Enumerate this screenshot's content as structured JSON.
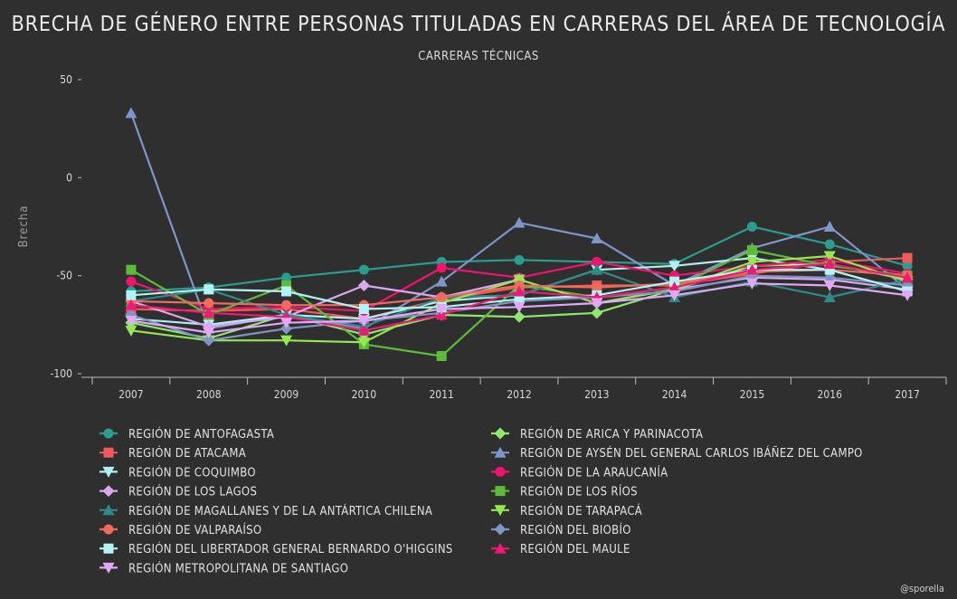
{
  "chart_data": {
    "type": "line",
    "title": "BRECHA DE GÉNERO ENTRE PERSONAS TITULADAS EN CARRERAS DEL ÁREA DE TECNOLOGÍA",
    "subtitle": "CARRERAS TÉCNICAS",
    "xlabel": "",
    "ylabel": "Brecha",
    "ylim": [
      -100,
      50
    ],
    "yticks": [
      50,
      0,
      -50,
      -100
    ],
    "x": [
      "2007",
      "2008",
      "2009",
      "2010",
      "2011",
      "2012",
      "2013",
      "2014",
      "2015",
      "2016",
      "2017"
    ],
    "grid": false,
    "legend_placement": "bottom",
    "series": [
      {
        "name": "REGIÓN DE ANTOFAGASTA",
        "color": "#2a9d8f",
        "marker": "circle",
        "values": [
          -58,
          -56,
          -51,
          -47,
          -43,
          -42,
          -43,
          -44,
          -25,
          -34,
          -45
        ]
      },
      {
        "name": "REGIÓN DE ARICA Y PARINACOTA",
        "color": "#8ee86b",
        "marker": "diamond",
        "values": [
          -74,
          -82,
          -70,
          -80,
          -70,
          -71,
          -69,
          -57,
          -45,
          -44,
          -52
        ]
      },
      {
        "name": "REGIÓN DE ATACAMA",
        "color": "#f05a5a",
        "marker": "square",
        "values": [
          -67,
          -68,
          -67,
          -72,
          -62,
          -56,
          -55,
          -55,
          -49,
          -43,
          -41
        ]
      },
      {
        "name": "REGIÓN DE AYSÉN DEL GENERAL CARLOS IBÁÑEZ DEL CAMPO",
        "color": "#7e95c9",
        "marker": "triangle",
        "values": [
          33,
          -77,
          -70,
          -77,
          -53,
          -23,
          -31,
          -55,
          -36,
          -25,
          -57
        ]
      },
      {
        "name": "REGIÓN DE COQUIMBO",
        "color": "#b3eff0",
        "marker": "triangle-down",
        "values": [
          -72,
          -75,
          -70,
          -72,
          -63,
          -60,
          -47,
          -45,
          -41,
          -47,
          -58
        ]
      },
      {
        "name": "REGIÓN DE LA ARAUCANÍA",
        "color": "#f0146e",
        "marker": "circle",
        "values": [
          -53,
          -67,
          -66,
          -68,
          -46,
          -51,
          -43,
          -50,
          -45,
          -42,
          -49
        ]
      },
      {
        "name": "REGIÓN DE LOS LAGOS",
        "color": "#d9a8f0",
        "marker": "diamond",
        "values": [
          -63,
          -76,
          -71,
          -55,
          -61,
          -52,
          -64,
          -57,
          -51,
          -52,
          -57
        ]
      },
      {
        "name": "REGIÓN DE LOS RÍOS",
        "color": "#5dbb3a",
        "marker": "square",
        "values": [
          -47,
          -70,
          -55,
          -85,
          -91,
          -55,
          -61,
          -56,
          -37,
          -45,
          -50
        ]
      },
      {
        "name": "REGIÓN DE MAGALLANES Y DE LA ANTÁRTICA CHILENA",
        "color": "#2d8a86",
        "marker": "triangle",
        "values": [
          -63,
          -57,
          -70,
          -76,
          -61,
          -60,
          -47,
          -61,
          -53,
          -61,
          -52
        ]
      },
      {
        "name": "REGIÓN DE TARAPACÁ",
        "color": "#95e852",
        "marker": "triangle-down",
        "values": [
          -78,
          -83,
          -83,
          -84,
          -64,
          -52,
          -64,
          -57,
          -43,
          -40,
          -53
        ]
      },
      {
        "name": "REGIÓN DE VALPARAÍSO",
        "color": "#f06a5e",
        "marker": "circle",
        "values": [
          -63,
          -64,
          -65,
          -65,
          -61,
          -55,
          -56,
          -54,
          -48,
          -47,
          -50
        ]
      },
      {
        "name": "REGIÓN DEL BIOBÍO",
        "color": "#7d97c2",
        "marker": "diamond",
        "values": [
          -70,
          -83,
          -77,
          -73,
          -69,
          -63,
          -61,
          -58,
          -50,
          -51,
          -55
        ]
      },
      {
        "name": "REGIÓN DEL LIBERTADOR GENERAL BERNARDO O'HIGGINS",
        "color": "#b4f3f3",
        "marker": "square",
        "values": [
          -60,
          -57,
          -58,
          -67,
          -66,
          -62,
          -60,
          -53,
          -47,
          -47,
          -58
        ]
      },
      {
        "name": "REGIÓN DEL MAULE",
        "color": "#ee1a73",
        "marker": "triangle",
        "values": [
          -65,
          -69,
          -71,
          -78,
          -70,
          -58,
          -61,
          -56,
          -47,
          -44,
          -51
        ]
      },
      {
        "name": "REGIÓN METROPOLITANA DE SANTIAGO",
        "color": "#e2a8f5",
        "marker": "triangle-down",
        "values": [
          -73,
          -79,
          -74,
          -73,
          -67,
          -66,
          -64,
          -60,
          -54,
          -55,
          -60
        ]
      }
    ]
  },
  "credit": "@sporella"
}
